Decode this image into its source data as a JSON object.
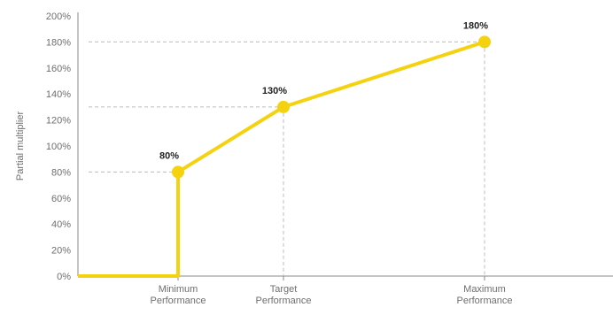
{
  "chart_data": {
    "type": "line",
    "ylabel": "Partial multiplier",
    "xlabel": "",
    "ylim": [
      0,
      200
    ],
    "y_ticks": [
      "0%",
      "20%",
      "40%",
      "60%",
      "80%",
      "100%",
      "120%",
      "140%",
      "160%",
      "180%",
      "200%"
    ],
    "categories": [
      {
        "line1": "Minimum",
        "line2": "Performance"
      },
      {
        "line1": "Target",
        "line2": "Performance"
      },
      {
        "line1": "Maximum",
        "line2": "Performance"
      }
    ],
    "series": [
      {
        "points": [
          {
            "x": "start",
            "y": 0
          },
          {
            "x": "Minimum Performance",
            "y": 0
          },
          {
            "x": "Minimum Performance",
            "y": 80,
            "label": "80%"
          },
          {
            "x": "Target Performance",
            "y": 130,
            "label": "130%"
          },
          {
            "x": "Maximum Performance",
            "y": 180,
            "label": "180%"
          }
        ]
      }
    ],
    "grid": false,
    "reference_lines": "dashed",
    "colors": {
      "series": "#f5d20f",
      "reference": "#bcbcbc",
      "axis": "#8a8a8a"
    }
  }
}
